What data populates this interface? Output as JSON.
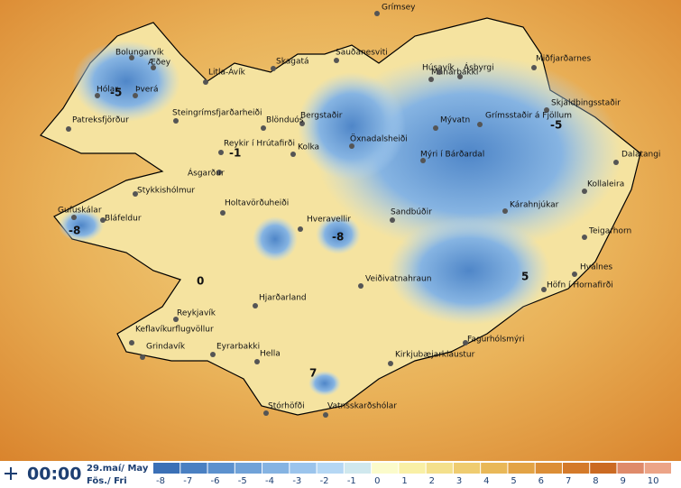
{
  "places": [
    {
      "name": "Grímsey"
    },
    {
      "name": "Sauðanesviti"
    },
    {
      "name": "Mánárbakki"
    },
    {
      "name": "Skagatá"
    },
    {
      "name": "Bolungarvík"
    },
    {
      "name": "Æðey"
    },
    {
      "name": "Litla-Ávík"
    },
    {
      "name": "Hólar"
    },
    {
      "name": "Þverá"
    },
    {
      "name": "Húsavík"
    },
    {
      "name": "Ásbyrgi"
    },
    {
      "name": "Miðfjarðarnes"
    },
    {
      "name": "Skjaldþingsstaðir"
    },
    {
      "name": "Grímsstaðir á Fjöllum"
    },
    {
      "name": "Mývatn"
    },
    {
      "name": "Bergstaðir"
    },
    {
      "name": "Blönduós"
    },
    {
      "name": "Steingrímsfjarðarheiði"
    },
    {
      "name": "Patreksfjörður"
    },
    {
      "name": "Öxnadalsheiði"
    },
    {
      "name": "Mýri í Bárðardal"
    },
    {
      "name": "Dalatangi"
    },
    {
      "name": "Reykir í Hrútafirði"
    },
    {
      "name": "Kolka"
    },
    {
      "name": "Ásgarður"
    },
    {
      "name": "Stykkishólmur"
    },
    {
      "name": "Kollaleira"
    },
    {
      "name": "Holtavörðuheiði"
    },
    {
      "name": "Kárahnjúkar"
    },
    {
      "name": "Gufuskálar"
    },
    {
      "name": "Bláfeldur"
    },
    {
      "name": "Sandbúðir"
    },
    {
      "name": "Hveravellir"
    },
    {
      "name": "Teigarhorn"
    },
    {
      "name": "Hvalnes"
    },
    {
      "name": "Veiðivatnahraun"
    },
    {
      "name": "Höfn í Hornafirði"
    },
    {
      "name": "Hjarðarland"
    },
    {
      "name": "Reykjavík"
    },
    {
      "name": "Keflavíkurflugvöllur"
    },
    {
      "name": "Fagurhólsmýri"
    },
    {
      "name": "Grindavík"
    },
    {
      "name": "Eyrarbakki"
    },
    {
      "name": "Hella"
    },
    {
      "name": "Kirkjubæjarklaustur"
    },
    {
      "name": "Stórhöfði"
    },
    {
      "name": "Vatnsskarðshólar"
    }
  ],
  "temperature_labels": [
    "-5",
    "-5",
    "-1",
    "-8",
    "-8",
    "0",
    "5",
    "7"
  ],
  "footer": {
    "time": "00:00",
    "date": "29.maí/ May",
    "day": "Fös./ Fri"
  },
  "legend": [
    {
      "value": -8,
      "color": "#3b70b6"
    },
    {
      "value": -7,
      "color": "#4a80c2"
    },
    {
      "value": -6,
      "color": "#5c91ce"
    },
    {
      "value": -5,
      "color": "#70a2d8"
    },
    {
      "value": -4,
      "color": "#85b3e2"
    },
    {
      "value": -3,
      "color": "#9bc4ec"
    },
    {
      "value": -2,
      "color": "#b5d7f4"
    },
    {
      "value": -1,
      "color": "#d0e8ee"
    },
    {
      "value": 0,
      "color": "#fbfbcb"
    },
    {
      "value": 1,
      "color": "#f9f0a6"
    },
    {
      "value": 2,
      "color": "#f4e08c"
    },
    {
      "value": 3,
      "color": "#efcc70"
    },
    {
      "value": 4,
      "color": "#e9b858"
    },
    {
      "value": 5,
      "color": "#e3a345"
    },
    {
      "value": 6,
      "color": "#dc8e36"
    },
    {
      "value": 7,
      "color": "#d47a2a"
    },
    {
      "value": 8,
      "color": "#cb6a22"
    },
    {
      "value": 9,
      "color": "#df8a6a"
    },
    {
      "value": 10,
      "color": "#eca487"
    }
  ]
}
